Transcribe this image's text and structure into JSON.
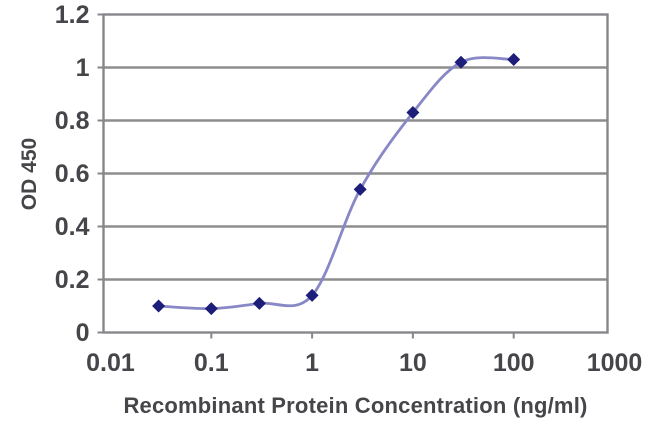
{
  "figure": {
    "description": "ELISA sigmoid dose-response curve, single series, no title, no legend"
  },
  "chart_data": {
    "type": "line",
    "x": [
      0.03,
      0.1,
      0.3,
      1,
      3,
      10,
      30,
      100
    ],
    "y": [
      0.1,
      0.09,
      0.11,
      0.14,
      0.54,
      0.83,
      1.02,
      1.03
    ],
    "title": "",
    "xlabel": "Recombinant Protein Concentration (ng/ml)",
    "ylabel": "OD 450",
    "x_scale": "log",
    "y_scale": "linear",
    "xlim": [
      0.01,
      1000
    ],
    "ylim": [
      0,
      1.2
    ],
    "x_tick_labels": [
      "0.01",
      "0.1",
      "1",
      "10",
      "100",
      "1000"
    ],
    "y_tick_labels": [
      "0",
      "0.2",
      "0.4",
      "0.6",
      "0.8",
      "1",
      "1.2"
    ],
    "grid": "horizontal-solid",
    "legend_position": "none",
    "line_style": "smooth-spline",
    "marker_shape": "diamond",
    "colors": {
      "line": "#8888c6",
      "marker": "#1d1d7a",
      "axis_frame": "#87878b",
      "gridline": "#8d8d8d",
      "text": "#46464a",
      "background": "#ffffff"
    }
  }
}
